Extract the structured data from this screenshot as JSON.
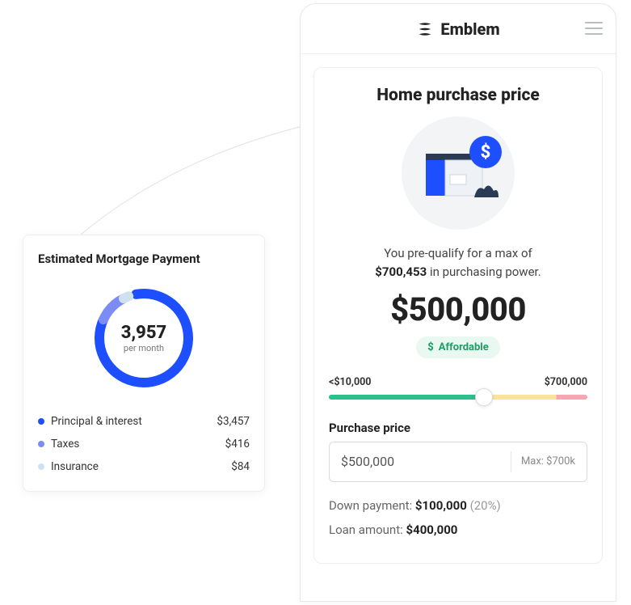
{
  "estimated_card": {
    "title": "Estimated Mortgage Payment",
    "donut": {
      "value": "3,957",
      "sub": "per month",
      "segments": [
        {
          "label": "Principal & interest",
          "value": "$3,457",
          "color": "#1e4fff",
          "pct": 87
        },
        {
          "label": "Taxes",
          "value": "$416",
          "color": "#7c8cf5",
          "pct": 11
        },
        {
          "label": "Insurance",
          "value": "$84",
          "color": "#cfe1ef",
          "pct": 2
        }
      ],
      "stroke_width": 12,
      "radius": 55,
      "background": "#ffffff"
    }
  },
  "phone": {
    "brand": "Emblem",
    "card": {
      "title": "Home purchase price",
      "prequal_line1": "You pre-qualify for a max of",
      "prequal_bold": "$700,453",
      "prequal_line2_suffix": " in purchasing power.",
      "selected_price": "$500,000",
      "badge": "Affordable",
      "slider": {
        "min_label": "<$10,000",
        "max_label": "$700,000",
        "thumb_pct": 60,
        "segments": [
          {
            "color": "#2bbf8a",
            "stop": 60
          },
          {
            "color": "#f9e29f",
            "stop": 88
          },
          {
            "color": "#f3a7b2",
            "stop": 100
          }
        ]
      },
      "purchase_label": "Purchase price",
      "purchase_input_value": "$500,000",
      "purchase_input_max": "Max: $700k",
      "down_payment_label": "Down payment: ",
      "down_payment_value": "$100,000",
      "down_payment_pct": "(20%)",
      "loan_label": "Loan amount: ",
      "loan_value": "$400,000"
    }
  },
  "colors": {
    "brand_blue": "#1e4fff",
    "badge_bg": "#e9f8f1",
    "badge_fg": "#1f9d64"
  }
}
